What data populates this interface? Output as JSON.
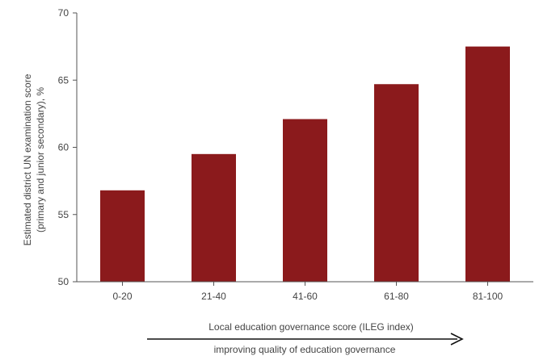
{
  "chart_data": {
    "type": "bar",
    "categories": [
      "0-20",
      "21-40",
      "41-60",
      "61-80",
      "81-100"
    ],
    "values": [
      56.8,
      59.5,
      62.1,
      64.7,
      67.5
    ],
    "title": "",
    "xlabel": "Local education governance score (ILEG index)",
    "xlabel_arrow_caption": "improving quality of education governance",
    "ylabel_lines": [
      "Estimated district UN examination score",
      "(primary and junior secondary), %"
    ],
    "ylim": [
      50,
      70
    ],
    "yticks": [
      50,
      55,
      60,
      65,
      70
    ],
    "grid": false,
    "bar_color": "#8b1a1c"
  }
}
